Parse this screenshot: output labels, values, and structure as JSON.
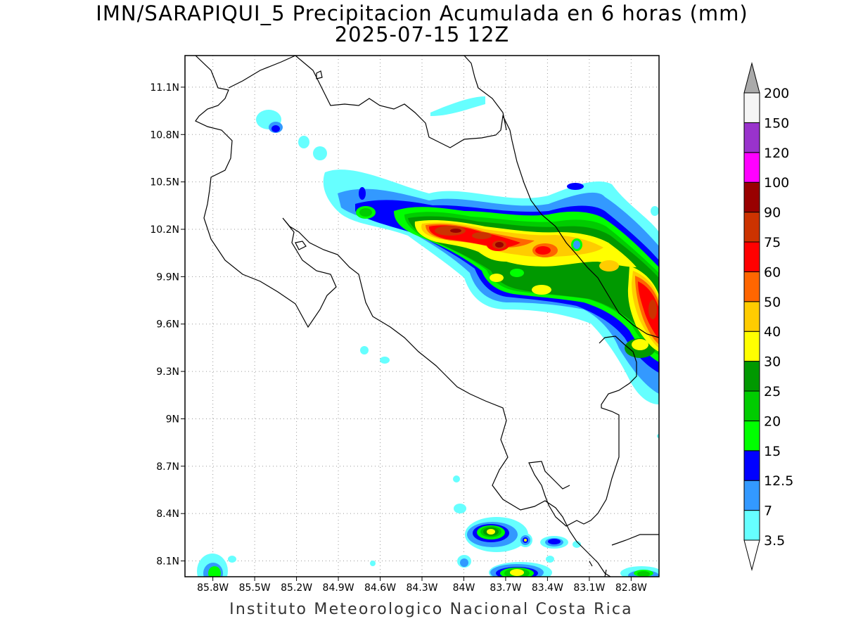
{
  "title": {
    "line1": "IMN/SARAPIQUI_5 Precipitacion Acumulada en 6 horas (mm)",
    "line2": "2025-07-15 12Z"
  },
  "footer": "Instituto Meteorologico Nacional Costa Rica",
  "map": {
    "lon_range": [
      -86.0,
      -82.6
    ],
    "lat_range": [
      8.0,
      11.3
    ],
    "lat_ticks": [
      {
        "value": 11.1,
        "label": "11.1N"
      },
      {
        "value": 10.8,
        "label": "10.8N"
      },
      {
        "value": 10.5,
        "label": "10.5N"
      },
      {
        "value": 10.2,
        "label": "10.2N"
      },
      {
        "value": 9.9,
        "label": "9.9N"
      },
      {
        "value": 9.6,
        "label": "9.6N"
      },
      {
        "value": 9.3,
        "label": "9.3N"
      },
      {
        "value": 9.0,
        "label": "9N"
      },
      {
        "value": 8.7,
        "label": "8.7N"
      },
      {
        "value": 8.4,
        "label": "8.4N"
      },
      {
        "value": 8.1,
        "label": "8.1N"
      }
    ],
    "lon_ticks": [
      {
        "value": -85.8,
        "label": "85.8W"
      },
      {
        "value": -85.5,
        "label": "85.5W"
      },
      {
        "value": -85.2,
        "label": "85.2W"
      },
      {
        "value": -84.9,
        "label": "84.9W"
      },
      {
        "value": -84.6,
        "label": "84.6W"
      },
      {
        "value": -84.3,
        "label": "84.3W"
      },
      {
        "value": -84.0,
        "label": "84W"
      },
      {
        "value": -83.7,
        "label": "83.7W"
      },
      {
        "value": -83.4,
        "label": "83.4W"
      },
      {
        "value": -83.1,
        "label": "83.1W"
      },
      {
        "value": -82.8,
        "label": "82.8W"
      }
    ],
    "grid": "dotted"
  },
  "colorbar": {
    "levels": [
      {
        "label": "3.5",
        "color": "#66ffff"
      },
      {
        "label": "7",
        "color": "#3399ff"
      },
      {
        "label": "12.5",
        "color": "#0000ff"
      },
      {
        "label": "15",
        "color": "#00ff00"
      },
      {
        "label": "20",
        "color": "#00cc00"
      },
      {
        "label": "25",
        "color": "#009900"
      },
      {
        "label": "30",
        "color": "#ffff00"
      },
      {
        "label": "40",
        "color": "#ffcc00"
      },
      {
        "label": "50",
        "color": "#ff6600"
      },
      {
        "label": "60",
        "color": "#ff0000"
      },
      {
        "label": "75",
        "color": "#cc3300"
      },
      {
        "label": "90",
        "color": "#990000"
      },
      {
        "label": "100",
        "color": "#ff00ff"
      },
      {
        "label": "120",
        "color": "#9933cc"
      },
      {
        "label": "150",
        "color": "#f5f5f5"
      },
      {
        "label": "200",
        "color": "#aaaaaa"
      }
    ]
  }
}
